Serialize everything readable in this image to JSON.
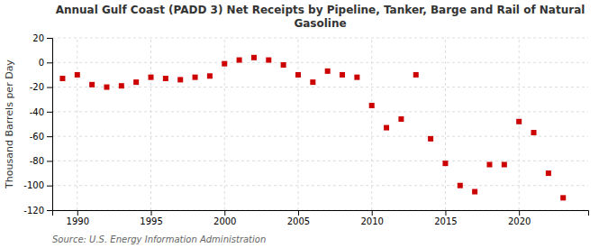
{
  "chart_data": {
    "type": "scatter",
    "title": "Annual Gulf Coast (PADD 3) Net Receipts by Pipeline, Tanker, Barge and Rail of Natural\nGasoline",
    "y_label": "Thousand Barrels per Day",
    "annotation": "Source: U.S. Energy Information Administration",
    "x": [
      1989,
      1990,
      1991,
      1992,
      1993,
      1994,
      1995,
      1996,
      1997,
      1998,
      1999,
      2000,
      2001,
      2002,
      2003,
      2004,
      2005,
      2006,
      2007,
      2008,
      2009,
      2010,
      2011,
      2012,
      2013,
      2014,
      2015,
      2016,
      2017,
      2018,
      2019,
      2020,
      2021,
      2022,
      2023
    ],
    "values": [
      -13,
      -10,
      -18,
      -20,
      -19,
      -16,
      -12,
      -13,
      -14,
      -12,
      -11,
      -1,
      2,
      4,
      2,
      -2,
      -10,
      -16,
      -7,
      -10,
      -12,
      -35,
      -53,
      -46,
      -10,
      -62,
      -82,
      -100,
      -105,
      -83,
      -83,
      -48,
      -57,
      -90,
      -110
    ],
    "color": "#cc0000",
    "marker": "square",
    "xlim": [
      1988.3,
      2024.7
    ],
    "xticks": [
      1990,
      1995,
      2000,
      2005,
      2010,
      2015,
      2020
    ],
    "ylim": [
      -120,
      20
    ],
    "yticks": [
      20,
      0,
      -20,
      -40,
      -60,
      -80,
      -100,
      -120
    ],
    "grid": true
  }
}
